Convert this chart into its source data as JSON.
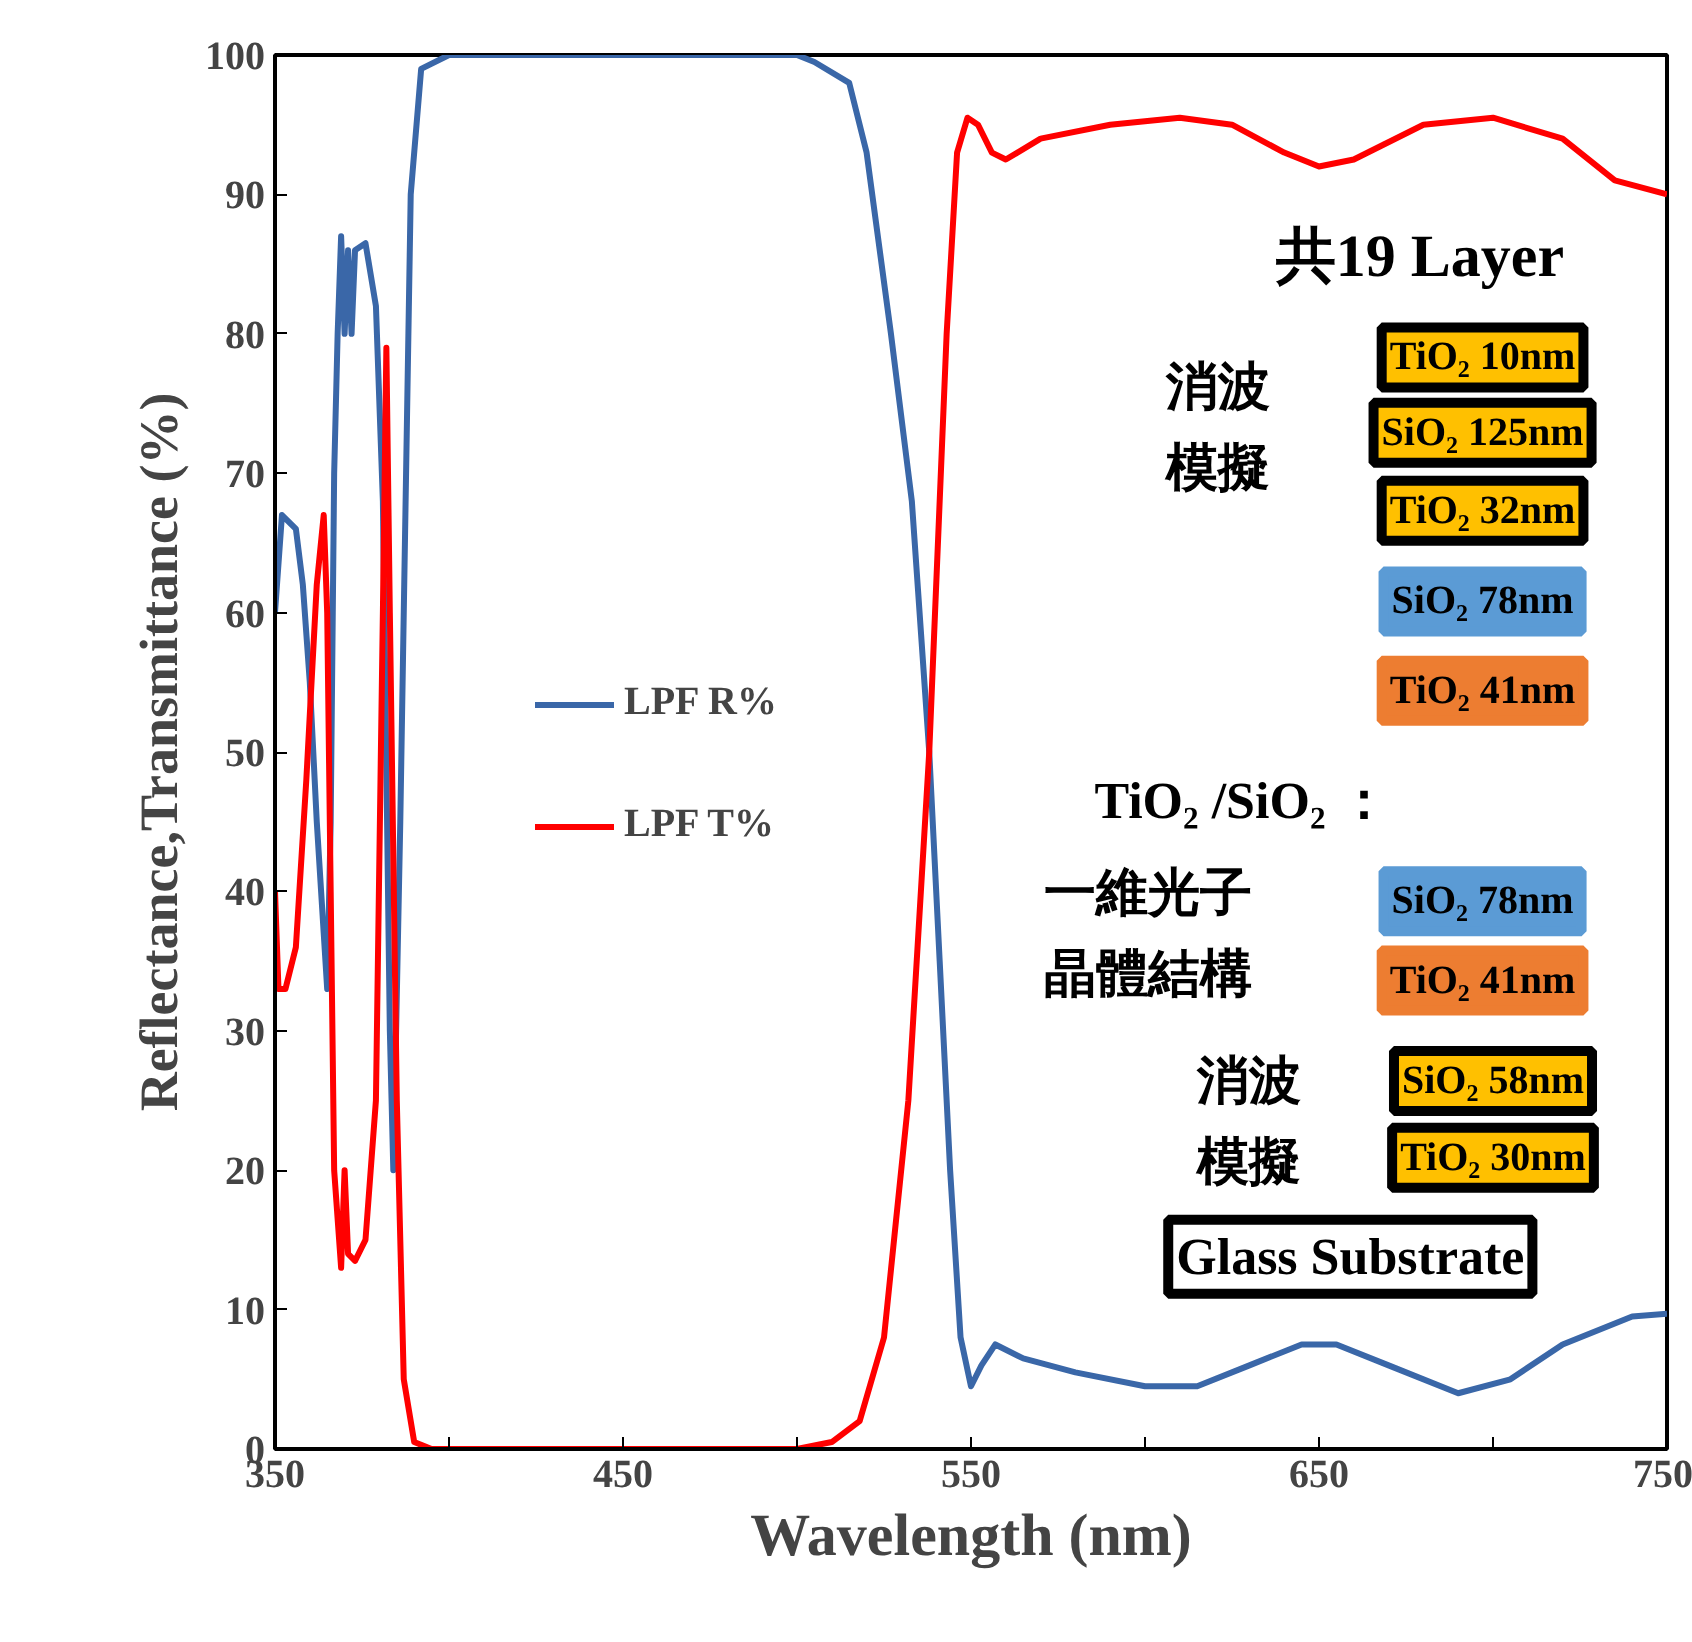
{
  "chart_data": {
    "type": "line",
    "xlabel": "Wavelength (nm)",
    "ylabel": "Reflectance,Transmittance (%)",
    "xlim": [
      350,
      750
    ],
    "ylim": [
      0,
      100
    ],
    "xticks": [
      350,
      {
        "value": 400,
        "label": null
      },
      450,
      {
        "value": 500,
        "label": null
      },
      550,
      {
        "value": 600,
        "label": null
      },
      650,
      {
        "value": 700,
        "label": null
      },
      750
    ],
    "yticks": [
      0,
      10,
      20,
      30,
      40,
      50,
      60,
      70,
      80,
      90,
      100
    ],
    "grid": false,
    "legend": "left",
    "marker": "none",
    "line_style": "solid",
    "series": [
      {
        "name": "LPF R%",
        "color": "#3a67a8",
        "x": [
          350,
          352,
          356,
          358,
          360,
          362,
          364,
          365,
          366,
          367,
          368,
          369,
          370,
          371,
          372,
          373,
          376,
          379,
          381,
          383,
          384,
          386,
          389,
          392,
          400,
          500,
          505,
          515,
          520,
          527,
          533,
          538,
          541,
          544,
          547,
          550,
          553,
          557,
          565,
          580,
          600,
          615,
          630,
          645,
          655,
          670,
          690,
          705,
          720,
          740,
          750
        ],
        "values": [
          60,
          67,
          66,
          62,
          55,
          45,
          37,
          33,
          45,
          70,
          80,
          87,
          80,
          86,
          80,
          86,
          86.5,
          82,
          68,
          30,
          20,
          45,
          90,
          99,
          100,
          100,
          99.5,
          98,
          93,
          80,
          68,
          50,
          35,
          20,
          8,
          4.5,
          6,
          7.5,
          6.5,
          5.5,
          4.5,
          4.5,
          6,
          7.5,
          7.5,
          6,
          4,
          5,
          7.5,
          9.5,
          9.7
        ]
      },
      {
        "name": "LPF T%",
        "color": "#ff0000",
        "x": [
          350,
          351,
          353,
          356,
          359,
          362,
          364,
          365,
          366,
          367,
          369,
          370,
          371,
          373,
          376,
          379,
          381,
          382,
          383,
          385,
          387,
          390,
          395,
          500,
          510,
          518,
          525,
          532,
          538,
          543,
          546,
          549,
          552,
          556,
          560,
          570,
          590,
          610,
          625,
          640,
          650,
          660,
          680,
          700,
          720,
          735,
          750
        ],
        "values": [
          40,
          33,
          33,
          36,
          48,
          62,
          67,
          60,
          40,
          20,
          13,
          20,
          14,
          13.5,
          15,
          25,
          60,
          79,
          60,
          25,
          5,
          0.5,
          0,
          0,
          0.5,
          2,
          8,
          25,
          50,
          80,
          93,
          95.5,
          95,
          93,
          92.5,
          94,
          95,
          95.5,
          95,
          93,
          92,
          92.5,
          95,
          95.5,
          94,
          91,
          90
        ]
      }
    ],
    "annotations": [
      "共19 Layer",
      "消波",
      "模擬",
      "TiO₂ 10nm",
      "SiO₂ 125nm",
      "TiO₂ 32nm",
      "SiO₂ 78nm",
      "TiO₂ 41nm",
      "TiO₂ /SiO₂ ：",
      "一維光子",
      "晶體結構",
      "SiO₂ 78nm",
      "TiO₂ 41nm",
      "消波",
      "模擬",
      "SiO₂ 58nm",
      "TiO₂ 30nm",
      "Glass Substrate"
    ]
  }
}
